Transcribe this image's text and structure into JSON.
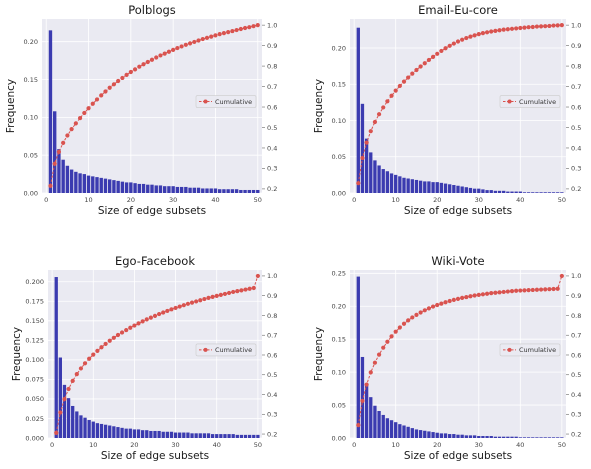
{
  "chart_data": [
    {
      "type": "bar",
      "title": "Polblogs",
      "xlabel": "Size of edge subsets",
      "ylabel": "Frequency",
      "xlim": [
        -1,
        51
      ],
      "ylim": [
        0,
        0.23
      ],
      "xticks": [
        0,
        10,
        20,
        30,
        40,
        50
      ],
      "yticks": [
        "0.00",
        "0.05",
        "0.10",
        "0.15",
        "0.20"
      ],
      "y2lim": [
        0.18,
        1.03
      ],
      "y2ticks": [
        "0.2",
        "0.3",
        "0.4",
        "0.5",
        "0.6",
        "0.7",
        "0.8",
        "0.9",
        "1.0"
      ],
      "grid": true,
      "legend_position": "right",
      "series": [
        {
          "name": "",
          "kind": "bar",
          "color": "#3b3bb0",
          "x": [
            1,
            2,
            3,
            4,
            5,
            6,
            7,
            8,
            9,
            10,
            11,
            12,
            13,
            14,
            15,
            16,
            17,
            18,
            19,
            20,
            21,
            22,
            23,
            24,
            25,
            26,
            27,
            28,
            29,
            30,
            31,
            32,
            33,
            34,
            35,
            36,
            37,
            38,
            39,
            40,
            41,
            42,
            43,
            44,
            45,
            46,
            47,
            48,
            49,
            50
          ],
          "values": [
            0.215,
            0.108,
            0.058,
            0.044,
            0.036,
            0.031,
            0.028,
            0.026,
            0.025,
            0.023,
            0.022,
            0.021,
            0.02,
            0.019,
            0.018,
            0.017,
            0.016,
            0.015,
            0.014,
            0.014,
            0.013,
            0.012,
            0.012,
            0.011,
            0.011,
            0.01,
            0.01,
            0.009,
            0.009,
            0.009,
            0.008,
            0.008,
            0.008,
            0.007,
            0.007,
            0.007,
            0.006,
            0.006,
            0.006,
            0.006,
            0.005,
            0.005,
            0.005,
            0.005,
            0.005,
            0.004,
            0.004,
            0.004,
            0.004,
            0.004
          ]
        },
        {
          "name": "Cumulative",
          "kind": "line",
          "axis": "right",
          "color": "#d9534f",
          "x": [
            1,
            2,
            3,
            4,
            5,
            6,
            7,
            8,
            9,
            10,
            11,
            12,
            13,
            14,
            15,
            16,
            17,
            18,
            19,
            20,
            21,
            22,
            23,
            24,
            25,
            26,
            27,
            28,
            29,
            30,
            31,
            32,
            33,
            34,
            35,
            36,
            37,
            38,
            39,
            40,
            41,
            42,
            43,
            44,
            45,
            46,
            47,
            48,
            49,
            50
          ],
          "values": [
            0.215,
            0.323,
            0.381,
            0.425,
            0.461,
            0.492,
            0.52,
            0.546,
            0.571,
            0.594,
            0.616,
            0.637,
            0.657,
            0.676,
            0.694,
            0.711,
            0.727,
            0.742,
            0.757,
            0.771,
            0.784,
            0.797,
            0.809,
            0.82,
            0.831,
            0.842,
            0.852,
            0.861,
            0.87,
            0.879,
            0.888,
            0.896,
            0.904,
            0.911,
            0.918,
            0.925,
            0.932,
            0.938,
            0.944,
            0.95,
            0.956,
            0.961,
            0.966,
            0.971,
            0.976,
            0.981,
            0.986,
            0.99,
            0.995,
            1.0
          ]
        }
      ]
    },
    {
      "type": "bar",
      "title": "Email-Eu-core",
      "xlabel": "Size of edge subsets",
      "ylabel": "Frequency",
      "xlim": [
        -1,
        51
      ],
      "ylim": [
        0,
        0.24
      ],
      "xticks": [
        0,
        10,
        20,
        30,
        40,
        50
      ],
      "yticks": [
        "0.00",
        "0.05",
        "0.10",
        "0.15",
        "0.20"
      ],
      "y2lim": [
        0.18,
        1.03
      ],
      "y2ticks": [
        "0.2",
        "0.3",
        "0.4",
        "0.5",
        "0.6",
        "0.7",
        "0.8",
        "0.9",
        "1.0"
      ],
      "grid": true,
      "legend_position": "right",
      "series": [
        {
          "name": "",
          "kind": "bar",
          "color": "#3b3bb0",
          "x": [
            1,
            2,
            3,
            4,
            5,
            6,
            7,
            8,
            9,
            10,
            11,
            12,
            13,
            14,
            15,
            16,
            17,
            18,
            19,
            20,
            21,
            22,
            23,
            24,
            25,
            26,
            27,
            28,
            29,
            30,
            31,
            32,
            33,
            34,
            35,
            36,
            37,
            38,
            39,
            40,
            41,
            42,
            43,
            44,
            45,
            46,
            47,
            48,
            49,
            50
          ],
          "values": [
            0.228,
            0.123,
            0.075,
            0.056,
            0.045,
            0.038,
            0.033,
            0.03,
            0.027,
            0.025,
            0.023,
            0.021,
            0.02,
            0.019,
            0.018,
            0.017,
            0.016,
            0.016,
            0.015,
            0.015,
            0.014,
            0.013,
            0.012,
            0.011,
            0.01,
            0.009,
            0.008,
            0.007,
            0.006,
            0.006,
            0.005,
            0.004,
            0.004,
            0.003,
            0.003,
            0.003,
            0.002,
            0.002,
            0.002,
            0.002,
            0.001,
            0.001,
            0.001,
            0.001,
            0.001,
            0.001,
            0.001,
            0.001,
            0.001,
            0.001
          ]
        },
        {
          "name": "Cumulative",
          "kind": "line",
          "axis": "right",
          "color": "#d9534f",
          "x": [
            1,
            2,
            3,
            4,
            5,
            6,
            7,
            8,
            9,
            10,
            11,
            12,
            13,
            14,
            15,
            16,
            17,
            18,
            19,
            20,
            21,
            22,
            23,
            24,
            25,
            26,
            27,
            28,
            29,
            30,
            31,
            32,
            33,
            34,
            35,
            36,
            37,
            38,
            39,
            40,
            41,
            42,
            43,
            44,
            45,
            46,
            47,
            48,
            49,
            50
          ],
          "values": [
            0.228,
            0.351,
            0.426,
            0.482,
            0.527,
            0.565,
            0.598,
            0.628,
            0.655,
            0.68,
            0.703,
            0.724,
            0.744,
            0.763,
            0.781,
            0.798,
            0.814,
            0.83,
            0.845,
            0.86,
            0.874,
            0.887,
            0.899,
            0.91,
            0.92,
            0.929,
            0.937,
            0.944,
            0.95,
            0.956,
            0.961,
            0.965,
            0.969,
            0.972,
            0.975,
            0.978,
            0.98,
            0.982,
            0.984,
            0.986,
            0.988,
            0.99,
            0.991,
            0.993,
            0.994,
            0.995,
            0.996,
            0.998,
            0.999,
            1.0
          ]
        }
      ]
    },
    {
      "type": "bar",
      "title": "Ego-Facebook",
      "xlabel": "Size of edge subsets",
      "ylabel": "Frequency",
      "xlim": [
        -1,
        51
      ],
      "ylim": [
        0,
        0.215
      ],
      "xticks": [
        0,
        10,
        20,
        30,
        40,
        50
      ],
      "yticks": [
        "0.000",
        "0.025",
        "0.050",
        "0.075",
        "0.100",
        "0.125",
        "0.150",
        "0.175",
        "0.200"
      ],
      "y2lim": [
        0.18,
        1.03
      ],
      "y2ticks": [
        "0.2",
        "0.3",
        "0.4",
        "0.5",
        "0.6",
        "0.7",
        "0.8",
        "0.9",
        "1.0"
      ],
      "grid": true,
      "legend_position": "right",
      "series": [
        {
          "name": "",
          "kind": "bar",
          "color": "#3b3bb0",
          "x": [
            1,
            2,
            3,
            4,
            5,
            6,
            7,
            8,
            9,
            10,
            11,
            12,
            13,
            14,
            15,
            16,
            17,
            18,
            19,
            20,
            21,
            22,
            23,
            24,
            25,
            26,
            27,
            28,
            29,
            30,
            31,
            32,
            33,
            34,
            35,
            36,
            37,
            38,
            39,
            40,
            41,
            42,
            43,
            44,
            45,
            46,
            47,
            48,
            49,
            50
          ],
          "values": [
            0.206,
            0.103,
            0.068,
            0.051,
            0.041,
            0.034,
            0.029,
            0.026,
            0.023,
            0.021,
            0.019,
            0.018,
            0.017,
            0.016,
            0.015,
            0.014,
            0.013,
            0.012,
            0.012,
            0.011,
            0.011,
            0.01,
            0.01,
            0.009,
            0.009,
            0.009,
            0.008,
            0.008,
            0.008,
            0.007,
            0.007,
            0.007,
            0.007,
            0.006,
            0.006,
            0.006,
            0.006,
            0.006,
            0.005,
            0.005,
            0.005,
            0.005,
            0.005,
            0.005,
            0.004,
            0.004,
            0.004,
            0.004,
            0.004,
            0.004
          ]
        },
        {
          "name": "Cumulative",
          "kind": "line",
          "axis": "right",
          "color": "#d9534f",
          "x": [
            1,
            2,
            3,
            4,
            5,
            6,
            7,
            8,
            9,
            10,
            11,
            12,
            13,
            14,
            15,
            16,
            17,
            18,
            19,
            20,
            21,
            22,
            23,
            24,
            25,
            26,
            27,
            28,
            29,
            30,
            31,
            32,
            33,
            34,
            35,
            36,
            37,
            38,
            39,
            40,
            41,
            42,
            43,
            44,
            45,
            46,
            47,
            48,
            49,
            50
          ],
          "values": [
            0.206,
            0.309,
            0.377,
            0.428,
            0.469,
            0.503,
            0.532,
            0.558,
            0.581,
            0.602,
            0.621,
            0.639,
            0.656,
            0.672,
            0.687,
            0.701,
            0.714,
            0.726,
            0.738,
            0.749,
            0.76,
            0.77,
            0.78,
            0.789,
            0.798,
            0.807,
            0.815,
            0.823,
            0.831,
            0.838,
            0.845,
            0.852,
            0.859,
            0.865,
            0.871,
            0.877,
            0.883,
            0.889,
            0.894,
            0.899,
            0.904,
            0.909,
            0.914,
            0.919,
            0.923,
            0.927,
            0.931,
            0.935,
            0.939,
            1.0
          ]
        }
      ]
    },
    {
      "type": "bar",
      "title": "Wiki-Vote",
      "xlabel": "Size of edge subsets",
      "ylabel": "Frequency",
      "xlim": [
        -1,
        51
      ],
      "ylim": [
        0,
        0.255
      ],
      "xticks": [
        0,
        10,
        20,
        30,
        40,
        50
      ],
      "yticks": [
        "0.00",
        "0.05",
        "0.10",
        "0.15",
        "0.20",
        "0.25"
      ],
      "y2lim": [
        0.18,
        1.03
      ],
      "y2ticks": [
        "0.2",
        "0.3",
        "0.4",
        "0.5",
        "0.6",
        "0.7",
        "0.8",
        "0.9",
        "1.0"
      ],
      "grid": true,
      "legend_position": "right",
      "series": [
        {
          "name": "",
          "kind": "bar",
          "color": "#3b3bb0",
          "x": [
            1,
            2,
            3,
            4,
            5,
            6,
            7,
            8,
            9,
            10,
            11,
            12,
            13,
            14,
            15,
            16,
            17,
            18,
            19,
            20,
            21,
            22,
            23,
            24,
            25,
            26,
            27,
            28,
            29,
            30,
            31,
            32,
            33,
            34,
            35,
            36,
            37,
            38,
            39,
            40,
            41,
            42,
            43,
            44,
            45,
            46,
            47,
            48,
            49,
            50
          ],
          "values": [
            0.245,
            0.123,
            0.082,
            0.062,
            0.049,
            0.041,
            0.035,
            0.03,
            0.027,
            0.024,
            0.021,
            0.019,
            0.017,
            0.015,
            0.013,
            0.012,
            0.011,
            0.01,
            0.009,
            0.008,
            0.007,
            0.007,
            0.006,
            0.006,
            0.005,
            0.005,
            0.004,
            0.004,
            0.004,
            0.003,
            0.003,
            0.003,
            0.003,
            0.002,
            0.002,
            0.002,
            0.002,
            0.002,
            0.002,
            0.001,
            0.001,
            0.001,
            0.001,
            0.001,
            0.001,
            0.001,
            0.001,
            0.001,
            0.001,
            0.001
          ]
        },
        {
          "name": "Cumulative",
          "kind": "line",
          "axis": "right",
          "color": "#d9534f",
          "x": [
            1,
            2,
            3,
            4,
            5,
            6,
            7,
            8,
            9,
            10,
            11,
            12,
            13,
            14,
            15,
            16,
            17,
            18,
            19,
            20,
            21,
            22,
            23,
            24,
            25,
            26,
            27,
            28,
            29,
            30,
            31,
            32,
            33,
            34,
            35,
            36,
            37,
            38,
            39,
            40,
            41,
            42,
            43,
            44,
            45,
            46,
            47,
            48,
            49,
            50
          ],
          "values": [
            0.245,
            0.368,
            0.45,
            0.512,
            0.561,
            0.602,
            0.637,
            0.667,
            0.694,
            0.718,
            0.739,
            0.758,
            0.775,
            0.79,
            0.803,
            0.815,
            0.826,
            0.836,
            0.845,
            0.853,
            0.86,
            0.867,
            0.873,
            0.879,
            0.884,
            0.889,
            0.893,
            0.897,
            0.901,
            0.904,
            0.907,
            0.91,
            0.913,
            0.915,
            0.917,
            0.919,
            0.921,
            0.923,
            0.925,
            0.926,
            0.927,
            0.928,
            0.929,
            0.93,
            0.931,
            0.932,
            0.933,
            0.934,
            0.935,
            1.0
          ]
        }
      ]
    }
  ]
}
